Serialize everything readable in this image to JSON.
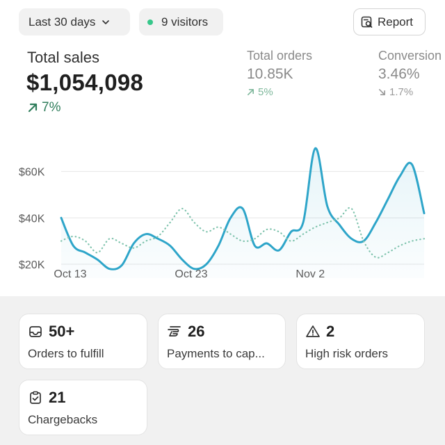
{
  "header": {
    "date_range_label": "Last 30 days",
    "visitors_label": "9 visitors",
    "visitors_dot_color": "#36c78a",
    "report_label": "Report",
    "date_range_icon": "chevron-down-icon",
    "report_icon": "report-search-icon"
  },
  "metrics": {
    "total_sales": {
      "label": "Total sales",
      "value": "$1,054,098",
      "change": "7%",
      "trend": "up",
      "color": "#2f7d5b"
    },
    "total_orders": {
      "label": "Total orders",
      "value": "10.85K",
      "change": "5%",
      "trend": "up",
      "color": "#7fb89c"
    },
    "conversion": {
      "label": "Conversion",
      "value": "3.46%",
      "change": "1.7%",
      "trend": "down",
      "color": "#9a9a9a"
    }
  },
  "chart_data": {
    "type": "line",
    "x_tick_labels": [
      "Oct 13",
      "Oct 23",
      "Nov 2"
    ],
    "y_tick_labels": [
      "$60K",
      "$40K",
      "$20K"
    ],
    "y_ticks": [
      60000,
      40000,
      20000
    ],
    "ylim": [
      14000,
      80000
    ],
    "x_ticks": [
      1,
      11,
      21
    ],
    "series": [
      {
        "style": "solid",
        "color": "#2ea5c9",
        "x": [
          0,
          1,
          2,
          3,
          4,
          5,
          6,
          7,
          8,
          9,
          10,
          11,
          12,
          13,
          14,
          15,
          16,
          17,
          18,
          19,
          20,
          21,
          22,
          23,
          24,
          25,
          26,
          27,
          28,
          29,
          30
        ],
        "values": [
          40000,
          28000,
          25000,
          22000,
          18000,
          19500,
          29000,
          33000,
          31000,
          28000,
          22000,
          18000,
          20000,
          28000,
          40000,
          44000,
          28000,
          29000,
          26000,
          34000,
          38000,
          70000,
          45000,
          37000,
          31000,
          30000,
          38000,
          48000,
          58000,
          63000,
          42000
        ]
      },
      {
        "style": "dotted",
        "color": "#7fc3ad",
        "x": [
          0,
          1,
          2,
          3,
          4,
          5,
          6,
          7,
          8,
          9,
          10,
          11,
          12,
          13,
          14,
          15,
          16,
          17,
          18,
          19,
          20,
          21,
          22,
          23,
          24,
          25,
          26,
          27,
          28,
          29,
          30
        ],
        "values": [
          30000,
          32000,
          30000,
          25000,
          31000,
          29000,
          27000,
          30000,
          32000,
          38000,
          44000,
          38000,
          34000,
          36000,
          33000,
          30000,
          31000,
          35000,
          34000,
          30000,
          33000,
          36000,
          38000,
          40000,
          44000,
          30000,
          23000,
          25000,
          28000,
          30000,
          31000
        ]
      }
    ]
  },
  "cards": [
    {
      "icon": "inbox-icon",
      "value": "50+",
      "label": "Orders to fulfill"
    },
    {
      "icon": "payment-icon",
      "value": "26",
      "label": "Payments to cap..."
    },
    {
      "icon": "alert-triangle-icon",
      "value": "2",
      "label": "High risk orders"
    },
    {
      "icon": "clipboard-check-icon",
      "value": "21",
      "label": "Chargebacks"
    }
  ]
}
